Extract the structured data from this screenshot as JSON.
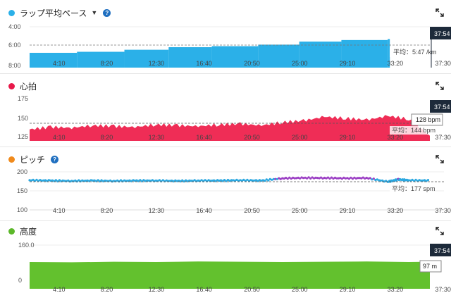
{
  "panels": [
    {
      "title": "ラップ平均ペース",
      "dot_color": "#2bb0e8",
      "has_dropdown": true,
      "y_ticks": [
        "4:00",
        "6:00",
        "8:00"
      ],
      "avg_label": "平均：5:47 /km",
      "cursor_time": "37:54",
      "x_ticks": [
        "4:10",
        "8:20",
        "12:30",
        "16:40",
        "20:50",
        "25:00",
        "29:10",
        "33:20",
        "37:30"
      ]
    },
    {
      "title": "心拍",
      "dot_color": "#e8194a",
      "has_dropdown": false,
      "y_ticks": [
        "175",
        "150",
        "125"
      ],
      "avg_label": "平均：144 bpm",
      "cursor_time": "37:54",
      "tooltip": "128 bpm",
      "x_ticks": [
        "4:10",
        "8:20",
        "12:30",
        "16:40",
        "20:50",
        "25:00",
        "29:10",
        "33:20",
        "37:30"
      ]
    },
    {
      "title": "ピッチ",
      "dot_color": "#f08a1c",
      "has_dropdown": false,
      "y_ticks": [
        "200",
        "150",
        "100"
      ],
      "avg_label": "平均：177 spm",
      "x_ticks": [
        "4:10",
        "8:20",
        "12:30",
        "16:40",
        "20:50",
        "25:00",
        "29:10",
        "33:20",
        "37:30"
      ]
    },
    {
      "title": "高度",
      "dot_color": "#5cb82a",
      "has_dropdown": false,
      "y_ticks": [
        "160.0",
        "0"
      ],
      "cursor_time": "37:54",
      "tooltip": "97 m",
      "x_ticks": [
        "4:10",
        "8:20",
        "12:30",
        "16:40",
        "20:50",
        "25:00",
        "29:10",
        "33:20",
        "37:30"
      ]
    }
  ],
  "chart_data": [
    {
      "type": "bar",
      "title": "ラップ平均ペース",
      "y_inverted": true,
      "ylim": [
        "8:00",
        "4:00"
      ],
      "x_minutes": [
        0,
        4.5,
        9.0,
        13.2,
        17.3,
        21.7,
        25.6,
        29.6,
        34.0
      ],
      "lap_pace_min_per_km": [
        6.55,
        6.45,
        6.25,
        6.0,
        5.9,
        5.75,
        5.45,
        5.3,
        5.2
      ],
      "avg": "5:47"
    },
    {
      "type": "area",
      "title": "心拍",
      "ylim": [
        125,
        175
      ],
      "series": [
        {
          "x_minutes": [
            0,
            2,
            4,
            6,
            8,
            10,
            12,
            14,
            16,
            18,
            20,
            22,
            24,
            26,
            28,
            30,
            32,
            34,
            36,
            38
          ],
          "values": [
            136,
            139,
            138,
            141,
            140,
            139,
            142,
            141,
            140,
            142,
            143,
            141,
            145,
            147,
            152,
            150,
            148,
            153,
            149,
            128
          ]
        }
      ],
      "avg": 144
    },
    {
      "type": "scatter",
      "title": "ピッチ",
      "ylim": [
        100,
        200
      ],
      "series": [
        {
          "x_minutes": [
            0,
            2,
            4,
            6,
            8,
            10,
            12,
            14,
            16,
            18,
            20,
            22,
            24,
            26,
            28,
            30,
            32,
            34,
            35,
            36,
            38
          ],
          "values": [
            178,
            177,
            176,
            177,
            176,
            177,
            177,
            176,
            177,
            177,
            178,
            177,
            183,
            184,
            184,
            183,
            184,
            174,
            180,
            178,
            177
          ]
        }
      ],
      "avg": 177
    },
    {
      "type": "area",
      "title": "高度",
      "ylim": [
        0,
        160
      ],
      "series": [
        {
          "x_minutes": [
            0,
            4,
            8,
            12,
            16,
            20,
            24,
            28,
            32,
            36,
            38
          ],
          "values": [
            96,
            95,
            97,
            96,
            98,
            97,
            96,
            97,
            98,
            96,
            97
          ]
        }
      ]
    }
  ]
}
